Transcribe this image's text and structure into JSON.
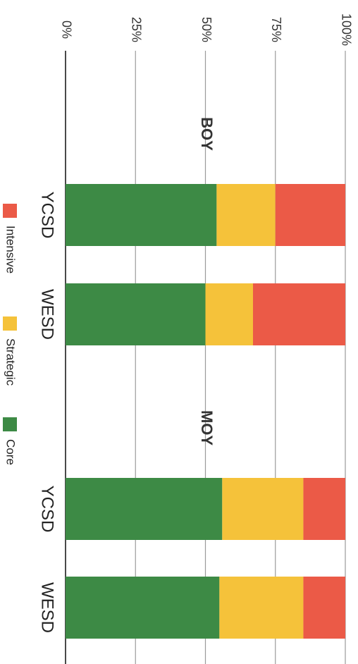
{
  "chart_data": {
    "type": "bar",
    "orientation": "stacked-horizontal",
    "stacking": "percent",
    "groups": [
      {
        "label": "BOY",
        "categories": [
          "YCSD",
          "WESD"
        ]
      },
      {
        "label": "MOY",
        "categories": [
          "YCSD",
          "WESD"
        ]
      }
    ],
    "categories": [
      "YCSD",
      "WESD",
      "YCSD",
      "WESD"
    ],
    "series": [
      {
        "name": "Core",
        "color": "#3d8a45",
        "values": [
          54,
          50,
          56,
          55
        ]
      },
      {
        "name": "Strategic",
        "color": "#f5c23a",
        "values": [
          21,
          17,
          29,
          30
        ]
      },
      {
        "name": "Intensive",
        "color": "#eb5a47",
        "values": [
          25,
          33,
          15,
          15
        ]
      }
    ],
    "xlim": [
      0,
      100
    ],
    "ticks": [
      "0%",
      "25%",
      "50%",
      "75%",
      "100%"
    ],
    "grid": true,
    "legend_position": "bottom",
    "legend_order": [
      "Intensive",
      "Strategic",
      "Core"
    ]
  }
}
